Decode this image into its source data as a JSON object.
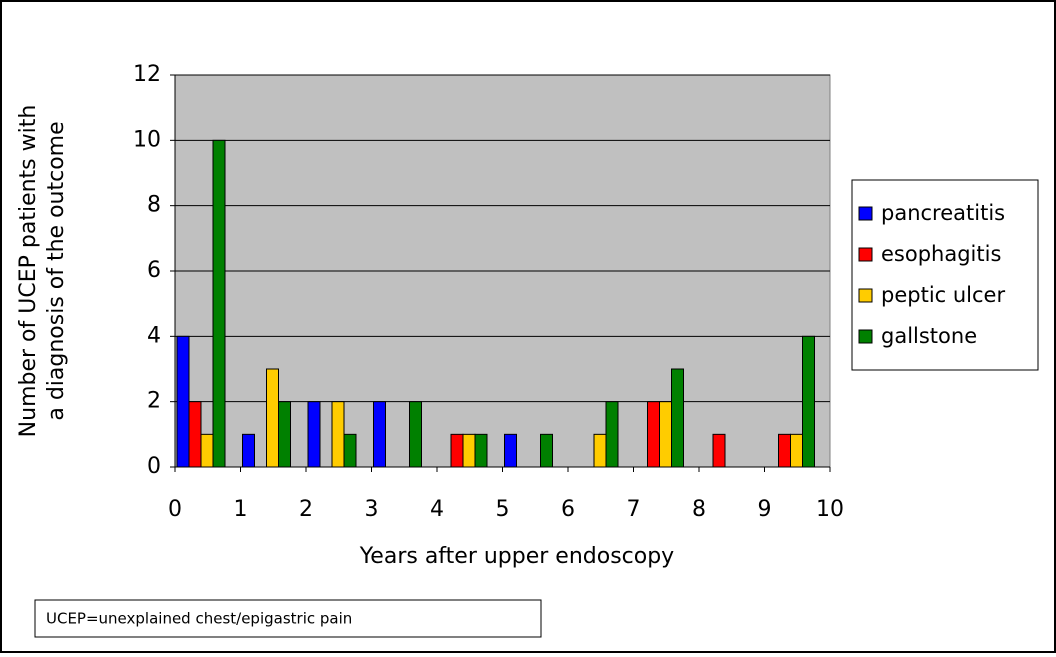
{
  "chart_data": {
    "type": "bar",
    "ylabel": [
      "Number of UCEP patients with",
      "a diagnosis of the outcome"
    ],
    "xlabel": "Years after upper endoscopy",
    "note": "UCEP=unexplained chest/epigastric pain",
    "categories": [
      null,
      null,
      null,
      null,
      null,
      null,
      null,
      null,
      null,
      null
    ],
    "xlim": [
      0,
      10
    ],
    "xticks": [
      0,
      1,
      2,
      3,
      4,
      5,
      6,
      7,
      8,
      9,
      10
    ],
    "ylim": [
      0,
      12
    ],
    "yticks": [
      0,
      2,
      4,
      6,
      8,
      10,
      12
    ],
    "grid": true,
    "legend": "right",
    "series": [
      {
        "name": "pancreatitis",
        "color": "#0000ff",
        "values": [
          4,
          1,
          2,
          2,
          0,
          1,
          0,
          0,
          0,
          0
        ]
      },
      {
        "name": "esophagitis",
        "color": "#ff0000",
        "values": [
          2,
          0,
          0,
          0,
          1,
          0,
          0,
          2,
          1,
          1
        ]
      },
      {
        "name": "peptic ulcer",
        "color": "#ffcc00",
        "values": [
          1,
          3,
          2,
          0,
          1,
          0,
          1,
          2,
          0,
          1
        ]
      },
      {
        "name": "gallstone",
        "color": "#008000",
        "values": [
          10,
          2,
          1,
          2,
          1,
          1,
          2,
          3,
          0,
          4
        ]
      }
    ]
  }
}
